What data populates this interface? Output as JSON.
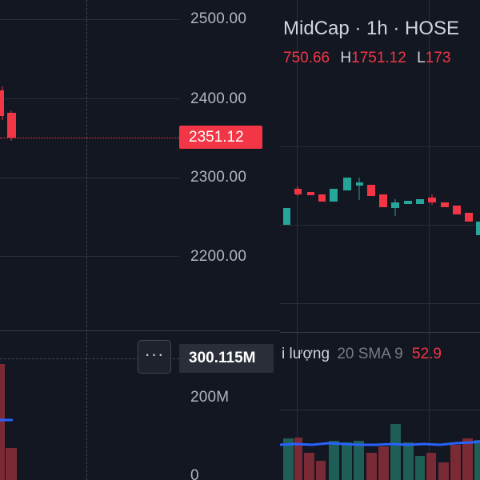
{
  "left_chart": {
    "price_axis": [
      "2500.00",
      "2400.00",
      "2300.00",
      "2200.00"
    ],
    "last_price_tag": "2351.12",
    "volume_tag": "300.115M",
    "volume_axis": [
      "200M",
      "0"
    ],
    "more_button_label": "···",
    "colors": {
      "up": "#26a69a",
      "down": "#f23645",
      "sma": "#2962ff"
    }
  },
  "right_chart": {
    "title": "MidCap · 1h · HOSE",
    "ohlc": {
      "open_val": "750.66",
      "high_key": "H",
      "high_val": "1751.12",
      "low_key": "L",
      "low_val": "173"
    },
    "volume_legend": {
      "label": "i lượng",
      "sma": "20 SMA 9",
      "value": "52.9"
    }
  }
}
